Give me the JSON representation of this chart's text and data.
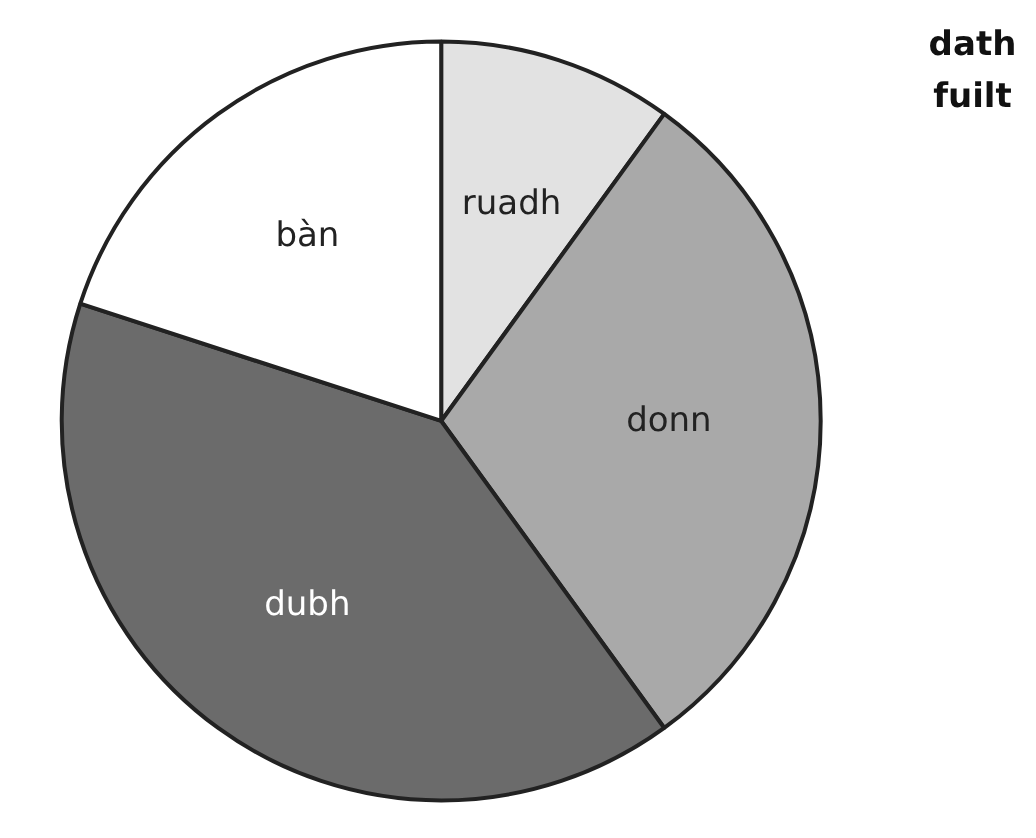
{
  "chart_data": {
    "type": "pie",
    "title": "dath fuilt",
    "categories": [
      "ruadh",
      "donn",
      "dubh",
      "bàn"
    ],
    "values": [
      10,
      30,
      40,
      20
    ],
    "colors": [
      "#e2e2e2",
      "#a9a9a9",
      "#6b6b6b",
      "#ffffff"
    ]
  }
}
